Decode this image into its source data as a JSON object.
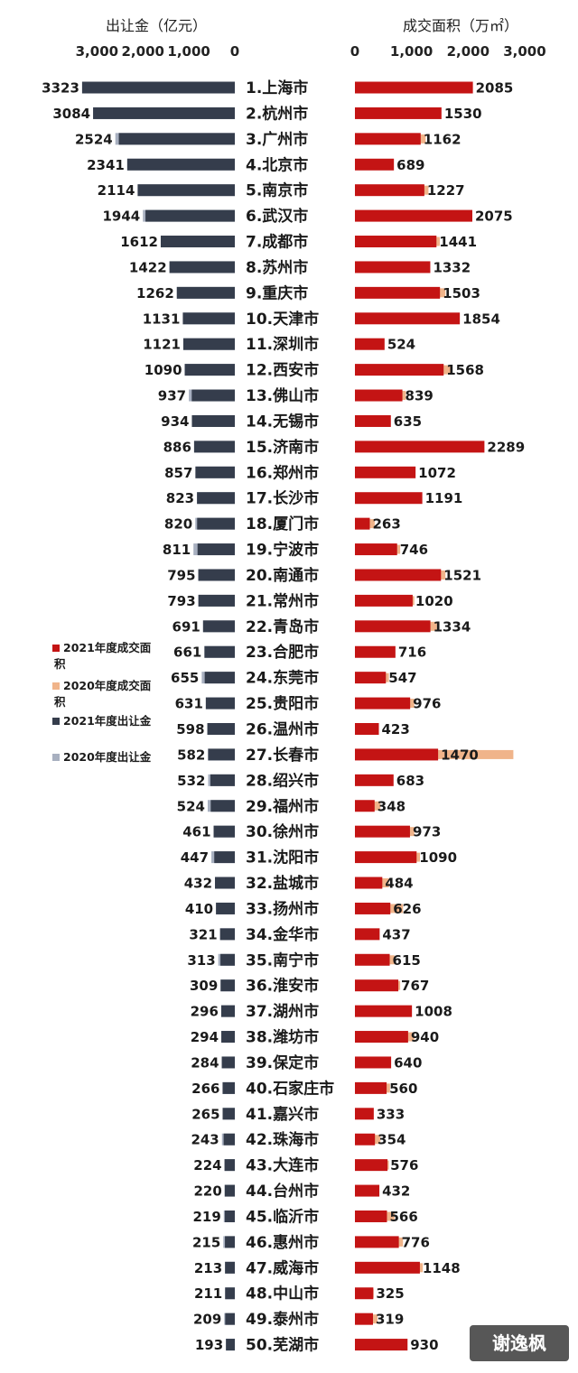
{
  "chart_data": {
    "type": "bar",
    "left_axis": {
      "title": "出让金（亿元）",
      "ticks": [
        "3,000",
        "2,000",
        "1,000",
        "0"
      ],
      "range": [
        0,
        3400
      ],
      "reversed": true
    },
    "right_axis": {
      "title": "成交面积（万㎡）",
      "ticks": [
        "0",
        "1,000",
        "2,000",
        "3,000"
      ],
      "range": [
        0,
        3400
      ]
    },
    "categories": [
      "1.上海市",
      "2.杭州市",
      "3.广州市",
      "4.北京市",
      "5.南京市",
      "6.武汉市",
      "7.成都市",
      "8.苏州市",
      "9.重庆市",
      "10.天津市",
      "11.深圳市",
      "12.西安市",
      "13.佛山市",
      "14.无锡市",
      "15.济南市",
      "16.郑州市",
      "17.长沙市",
      "18.厦门市",
      "19.宁波市",
      "20.南通市",
      "21.常州市",
      "22.青岛市",
      "23.合肥市",
      "24.东莞市",
      "25.贵阳市",
      "26.温州市",
      "27.长春市",
      "28.绍兴市",
      "29.福州市",
      "30.徐州市",
      "31.沈阳市",
      "32.盐城市",
      "33.扬州市",
      "34.金华市",
      "35.南宁市",
      "36.淮安市",
      "37.湖州市",
      "38.潍坊市",
      "39.保定市",
      "40.石家庄市",
      "41.嘉兴市",
      "42.珠海市",
      "43.大连市",
      "44.台州市",
      "45.临沂市",
      "46.惠州市",
      "47.威海市",
      "48.中山市",
      "49.泰州市",
      "50.芜湖市"
    ],
    "series": [
      {
        "name": "2021年度出让金",
        "color": "#353d4c",
        "values": [
          3323,
          3084,
          2524,
          2341,
          2114,
          1944,
          1612,
          1422,
          1262,
          1131,
          1121,
          1090,
          937,
          934,
          886,
          857,
          823,
          820,
          811,
          795,
          793,
          691,
          661,
          655,
          631,
          598,
          582,
          532,
          524,
          461,
          447,
          432,
          410,
          321,
          313,
          309,
          296,
          294,
          284,
          266,
          265,
          243,
          224,
          220,
          219,
          215,
          213,
          211,
          209,
          193
        ]
      },
      {
        "name": "2020年度出让金",
        "color": "#a8b0c0",
        "values": [
          3323,
          3084,
          2600,
          2341,
          2114,
          2000,
          1612,
          1422,
          1262,
          1131,
          1121,
          1090,
          1000,
          934,
          886,
          857,
          823,
          860,
          900,
          795,
          793,
          691,
          661,
          720,
          631,
          598,
          582,
          580,
          590,
          461,
          510,
          432,
          410,
          321,
          360,
          309,
          296,
          294,
          284,
          266,
          265,
          280,
          224,
          220,
          240,
          250,
          213,
          211,
          230,
          193
        ]
      },
      {
        "name": "2021年度成交面积",
        "color": "#c41414",
        "values": [
          2085,
          1530,
          1162,
          689,
          1227,
          2075,
          1441,
          1332,
          1503,
          1854,
          524,
          1568,
          839,
          635,
          2289,
          1072,
          1191,
          263,
          746,
          1521,
          1020,
          1334,
          716,
          547,
          976,
          423,
          1470,
          683,
          348,
          973,
          1090,
          484,
          626,
          437,
          615,
          767,
          1008,
          940,
          640,
          560,
          333,
          354,
          576,
          432,
          566,
          776,
          1148,
          325,
          319,
          930
        ]
      },
      {
        "name": "2020年度成交面积",
        "color": "#f0b48a",
        "values": [
          1900,
          1400,
          1250,
          600,
          1300,
          1950,
          1500,
          1250,
          1600,
          1750,
          500,
          1700,
          900,
          600,
          2200,
          1000,
          1100,
          350,
          800,
          1600,
          1050,
          1450,
          680,
          600,
          1050,
          400,
          2800,
          650,
          450,
          1050,
          1150,
          600,
          850,
          420,
          700,
          800,
          1000,
          1050,
          600,
          620,
          300,
          450,
          600,
          400,
          700,
          850,
          1200,
          330,
          400,
          850
        ]
      }
    ],
    "legend": {
      "placement": "left-middle",
      "entries": [
        "2021年度成交面积",
        "2020年度成交面积",
        "2021年度出让金",
        "2020年度出让金"
      ]
    }
  },
  "watermark": "谢逸枫"
}
